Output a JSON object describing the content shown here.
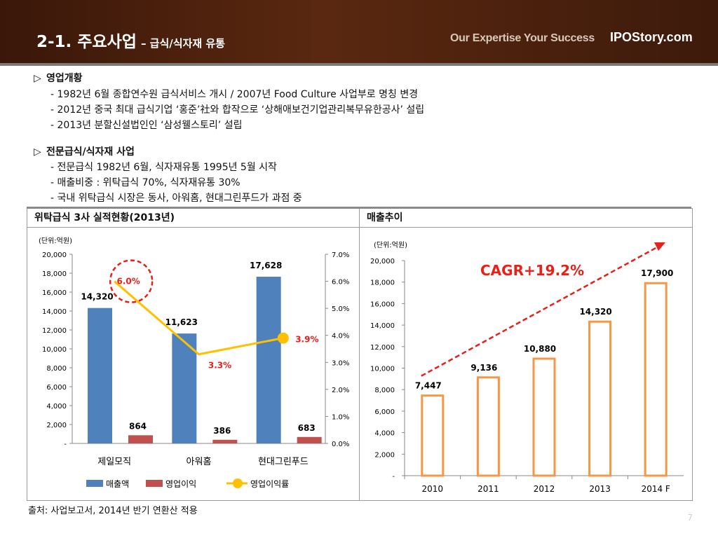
{
  "header": {
    "title": "2-1. 주요사업",
    "subtitle": "– 급식/식자재 유통",
    "tagline": "Our Expertise Your Success",
    "brand": "IPOStory.com"
  },
  "sections": [
    {
      "marker": "▷",
      "heading": "영업개황",
      "lines": [
        "- 1982년 6월 종합연수원 급식서비스 개시 / 2007년 Food Culture 사업부로 명칭 변경",
        "- 2012년 중국 최대 급식기업 ‘홍준’社와 합작으로 ‘상해애보건기업관리복무유한공사’ 설립",
        "- 2013년 분할신설법인인 ‘삼성웰스토리’ 설립"
      ]
    },
    {
      "marker": "▷",
      "heading": "전문급식/식자재 사업",
      "lines": [
        "- 전문급식 1982년 6월, 식자재유통 1995년 5월 시작",
        "- 매출비중 : 위탁급식 70%, 식자재유통 30%",
        "- 국내 위탁급식 시장은 동사, 아워홈, 현대그린푸드가 과점 중"
      ]
    }
  ],
  "panels": {
    "left_title": "위탁급식 3사 실적현황(2013년)",
    "right_title": "매출추이"
  },
  "chart_data": [
    {
      "type": "bar",
      "unit_label": "(단위:억원)",
      "categories": [
        "제일모직",
        "아워홈",
        "현대그린푸드"
      ],
      "series": [
        {
          "name": "매출액",
          "values": [
            14320,
            11623,
            17628
          ],
          "labels": [
            "14,320",
            "11,623",
            "17,628"
          ],
          "color": "#4f81bd"
        },
        {
          "name": "영업이익",
          "values": [
            864,
            386,
            683
          ],
          "labels": [
            "864",
            "386",
            "683"
          ],
          "color": "#c0504d"
        },
        {
          "name": "영업이익률",
          "type": "line",
          "axis": "right",
          "values": [
            6.0,
            3.3,
            3.9
          ],
          "labels": [
            "6.0%",
            "3.3%",
            "3.9%"
          ],
          "color": "#ffc000"
        }
      ],
      "ylim": [
        0,
        20000
      ],
      "yticks": [
        "-",
        "2,000",
        "4,000",
        "6,000",
        "8,000",
        "10,000",
        "12,000",
        "14,000",
        "16,000",
        "18,000",
        "20,000"
      ],
      "y2lim": [
        0,
        7
      ],
      "y2ticks": [
        "0.0%",
        "1.0%",
        "2.0%",
        "3.0%",
        "4.0%",
        "5.0%",
        "6.0%",
        "7.0%"
      ],
      "legend_position": "bottom",
      "highlight_colors": {
        "point_label": "#e8201a"
      }
    },
    {
      "type": "bar",
      "unit_label": "(단위:억원)",
      "categories": [
        "2010",
        "2011",
        "2012",
        "2013",
        "2014 F"
      ],
      "values": [
        7447,
        9136,
        10880,
        14320,
        17900
      ],
      "labels": [
        "7,447",
        "9,136",
        "10,880",
        "14,320",
        "17,900"
      ],
      "ylim": [
        0,
        20000
      ],
      "yticks": [
        "-",
        "2,000",
        "4,000",
        "6,000",
        "8,000",
        "10,000",
        "12,000",
        "14,000",
        "16,000",
        "18,000",
        "20,000"
      ],
      "annotation": "CAGR+19.2%",
      "bar_color": "#f79646",
      "annotation_color": "#e8201a"
    }
  ],
  "source": "출처: 사업보고서, 2014년 반기 연환산 적용",
  "page_number": "7"
}
